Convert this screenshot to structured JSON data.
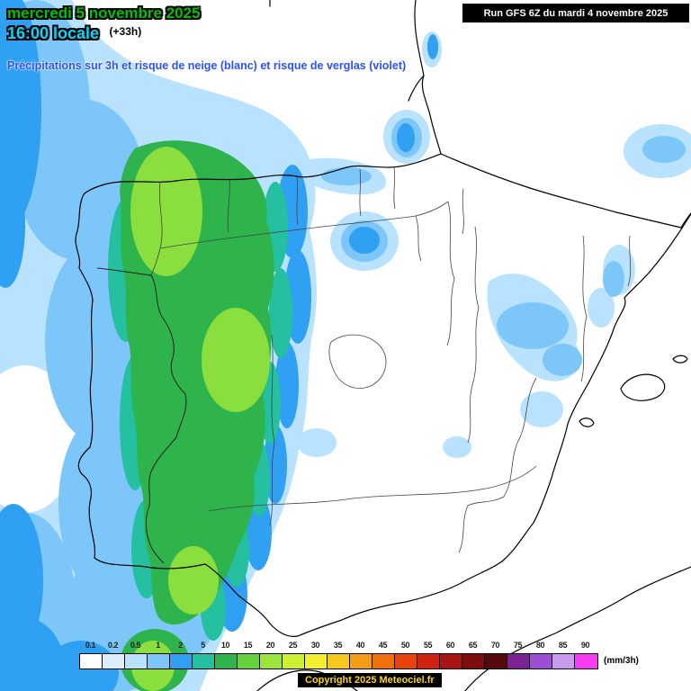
{
  "header": {
    "date": "mercredi 5 novembre 2025",
    "time": "16:00 locale",
    "offset": "(+33h)",
    "description": "Précipitations sur 3h et risque de neige (blanc) et risque de verglas (violet)",
    "run_info": "Run GFS 6Z du mardi 4 novembre 2025"
  },
  "legend": {
    "unit": "(mm/3h)",
    "stops": [
      {
        "value": "0.1",
        "color": "#FFFFFF"
      },
      {
        "value": "0.2",
        "color": "#DCEEFF"
      },
      {
        "value": "0.5",
        "color": "#B9E2FF"
      },
      {
        "value": "1",
        "color": "#7CC6F9"
      },
      {
        "value": "2",
        "color": "#2FA0F2"
      },
      {
        "value": "5",
        "color": "#24C0A0"
      },
      {
        "value": "10",
        "color": "#2FB34D"
      },
      {
        "value": "15",
        "color": "#63D23C"
      },
      {
        "value": "20",
        "color": "#9CE43A"
      },
      {
        "value": "25",
        "color": "#CDEF34"
      },
      {
        "value": "30",
        "color": "#F4EF2C"
      },
      {
        "value": "35",
        "color": "#F6C81E"
      },
      {
        "value": "40",
        "color": "#F49C14"
      },
      {
        "value": "45",
        "color": "#F0700C"
      },
      {
        "value": "50",
        "color": "#E8430A"
      },
      {
        "value": "55",
        "color": "#D02310"
      },
      {
        "value": "60",
        "color": "#A81412"
      },
      {
        "value": "65",
        "color": "#7E0D0F"
      },
      {
        "value": "70",
        "color": "#570A0E"
      },
      {
        "value": "75",
        "color": "#7D2391"
      },
      {
        "value": "80",
        "color": "#9C4FD6"
      },
      {
        "value": "85",
        "color": "#C79CEF"
      },
      {
        "value": "90",
        "color": "#F63BF2"
      }
    ]
  },
  "footer": {
    "copyright": "Copyright 2025 Meteociel.fr"
  }
}
